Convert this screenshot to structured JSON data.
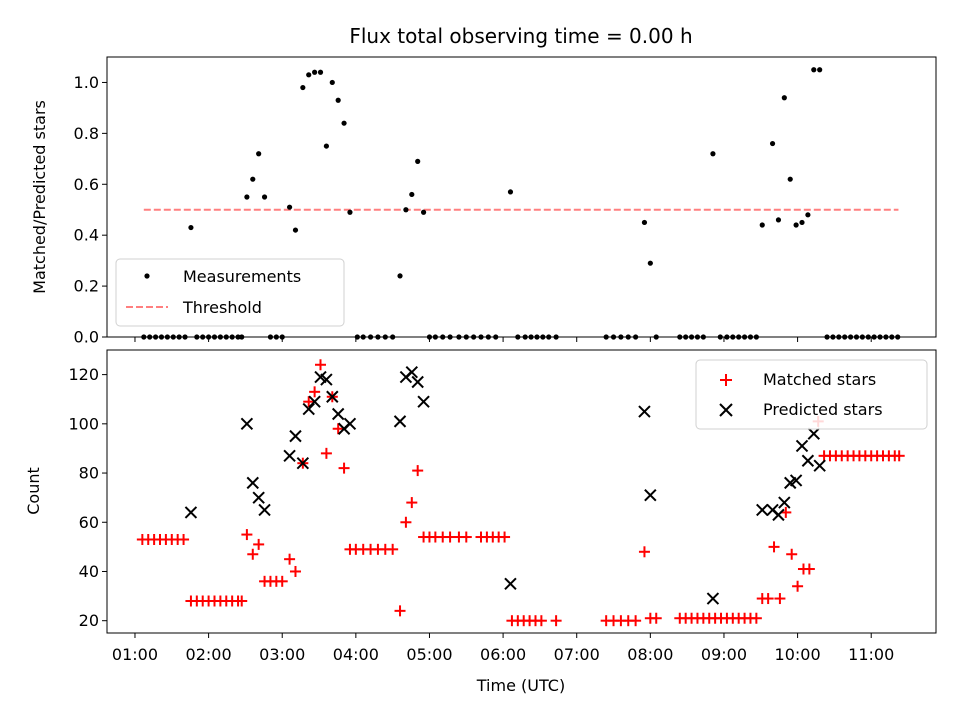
{
  "title": "Flux total observing time = 0.00 h",
  "top_ylabel": "Matched/Predicted stars",
  "bottom_ylabel": "Count",
  "xlabel": "Time (UTC)",
  "x_tick_labels": [
    "01:00",
    "02:00",
    "03:00",
    "04:00",
    "05:00",
    "06:00",
    "07:00",
    "08:00",
    "09:00",
    "10:00",
    "11:00"
  ],
  "legend_top": {
    "measurements": "Measurements",
    "threshold": "Threshold"
  },
  "legend_bottom": {
    "matched": "Matched stars",
    "predicted": "Predicted stars"
  },
  "colors": {
    "measurements": "#000000",
    "threshold": "#ff7f7f",
    "matched": "#ff0000",
    "predicted": "#000000"
  },
  "chart_data": [
    {
      "type": "scatter",
      "panel": "top",
      "xlabel": "",
      "ylabel": "Matched/Predicted stars",
      "x_unit": "hours UTC",
      "xlim": [
        0.62,
        11.88
      ],
      "ylim": [
        0,
        1.1
      ],
      "yticks": [
        0.0,
        0.2,
        0.4,
        0.6,
        0.8,
        1.0
      ],
      "y_tick_labels": [
        "0.0",
        "0.2",
        "0.4",
        "0.6",
        "0.8",
        "1.0"
      ],
      "legend_position": "lower-left",
      "threshold": {
        "value": 0.5,
        "x_range": [
          1.12,
          11.37
        ]
      },
      "series": [
        {
          "name": "Measurements",
          "points": [
            [
              1.12,
              0
            ],
            [
              1.2,
              0
            ],
            [
              1.28,
              0
            ],
            [
              1.36,
              0
            ],
            [
              1.44,
              0
            ],
            [
              1.52,
              0
            ],
            [
              1.6,
              0
            ],
            [
              1.68,
              0
            ],
            [
              1.76,
              0.43
            ],
            [
              1.84,
              0
            ],
            [
              1.92,
              0
            ],
            [
              2.0,
              0
            ],
            [
              2.08,
              0
            ],
            [
              2.16,
              0
            ],
            [
              2.24,
              0
            ],
            [
              2.32,
              0
            ],
            [
              2.4,
              0
            ],
            [
              2.45,
              0
            ],
            [
              2.52,
              0.55
            ],
            [
              2.6,
              0.62
            ],
            [
              2.68,
              0.72
            ],
            [
              2.76,
              0.55
            ],
            [
              2.84,
              0
            ],
            [
              2.92,
              0
            ],
            [
              3.0,
              0
            ],
            [
              3.1,
              0.51
            ],
            [
              3.18,
              0.42
            ],
            [
              3.28,
              0.98
            ],
            [
              3.36,
              1.03
            ],
            [
              3.44,
              1.04
            ],
            [
              3.52,
              1.04
            ],
            [
              3.6,
              0.75
            ],
            [
              3.68,
              1.0
            ],
            [
              3.76,
              0.93
            ],
            [
              3.84,
              0.84
            ],
            [
              3.92,
              0.49
            ],
            [
              4.02,
              0
            ],
            [
              4.1,
              0
            ],
            [
              4.2,
              0
            ],
            [
              4.3,
              0
            ],
            [
              4.4,
              0
            ],
            [
              4.5,
              0
            ],
            [
              4.6,
              0.24
            ],
            [
              4.68,
              0.5
            ],
            [
              4.76,
              0.56
            ],
            [
              4.84,
              0.69
            ],
            [
              4.92,
              0.49
            ],
            [
              5.0,
              0
            ],
            [
              5.08,
              0
            ],
            [
              5.18,
              0
            ],
            [
              5.28,
              0
            ],
            [
              5.4,
              0
            ],
            [
              5.5,
              0
            ],
            [
              5.6,
              0
            ],
            [
              5.7,
              0
            ],
            [
              5.8,
              0
            ],
            [
              5.9,
              0
            ],
            [
              6.1,
              0.57
            ],
            [
              6.2,
              0
            ],
            [
              6.3,
              0
            ],
            [
              6.38,
              0
            ],
            [
              6.46,
              0
            ],
            [
              6.54,
              0
            ],
            [
              6.62,
              0
            ],
            [
              6.72,
              0
            ],
            [
              7.4,
              0
            ],
            [
              7.5,
              0
            ],
            [
              7.6,
              0
            ],
            [
              7.7,
              0
            ],
            [
              7.8,
              0
            ],
            [
              7.92,
              0.45
            ],
            [
              8.0,
              0.29
            ],
            [
              8.08,
              0
            ],
            [
              8.4,
              0
            ],
            [
              8.48,
              0
            ],
            [
              8.56,
              0
            ],
            [
              8.64,
              0
            ],
            [
              8.72,
              0
            ],
            [
              8.85,
              0.72
            ],
            [
              8.95,
              0
            ],
            [
              9.04,
              0
            ],
            [
              9.12,
              0
            ],
            [
              9.2,
              0
            ],
            [
              9.28,
              0
            ],
            [
              9.36,
              0
            ],
            [
              9.44,
              0
            ],
            [
              9.52,
              0.44
            ],
            [
              9.66,
              0.76
            ],
            [
              9.74,
              0.46
            ],
            [
              9.82,
              0.94
            ],
            [
              9.9,
              0.62
            ],
            [
              9.98,
              0.44
            ],
            [
              10.06,
              0.45
            ],
            [
              10.14,
              0.48
            ],
            [
              10.22,
              1.05
            ],
            [
              10.3,
              1.05
            ],
            [
              10.4,
              0
            ],
            [
              10.48,
              0
            ],
            [
              10.56,
              0
            ],
            [
              10.64,
              0
            ],
            [
              10.72,
              0
            ],
            [
              10.8,
              0
            ],
            [
              10.88,
              0
            ],
            [
              10.96,
              0
            ],
            [
              11.04,
              0
            ],
            [
              11.12,
              0
            ],
            [
              11.2,
              0
            ],
            [
              11.28,
              0
            ],
            [
              11.36,
              0
            ]
          ]
        },
        {
          "name": "Threshold",
          "points": [
            [
              1.12,
              0.5
            ],
            [
              11.37,
              0.5
            ]
          ]
        }
      ]
    },
    {
      "type": "scatter",
      "panel": "bottom",
      "xlabel": "Time (UTC)",
      "ylabel": "Count",
      "x_unit": "hours UTC",
      "xlim": [
        0.62,
        11.88
      ],
      "ylim": [
        15,
        130
      ],
      "yticks": [
        20,
        40,
        60,
        80,
        100,
        120
      ],
      "y_tick_labels": [
        "20",
        "40",
        "60",
        "80",
        "100",
        "120"
      ],
      "xticks": [
        1,
        2,
        3,
        4,
        5,
        6,
        7,
        8,
        9,
        10,
        11
      ],
      "legend_position": "upper-right",
      "series": [
        {
          "name": "Matched stars",
          "points": [
            [
              1.1,
              53
            ],
            [
              1.18,
              53
            ],
            [
              1.26,
              53
            ],
            [
              1.34,
              53
            ],
            [
              1.42,
              53
            ],
            [
              1.5,
              53
            ],
            [
              1.58,
              53
            ],
            [
              1.66,
              53
            ],
            [
              1.76,
              28
            ],
            [
              1.84,
              28
            ],
            [
              1.92,
              28
            ],
            [
              2.0,
              28
            ],
            [
              2.08,
              28
            ],
            [
              2.16,
              28
            ],
            [
              2.24,
              28
            ],
            [
              2.32,
              28
            ],
            [
              2.4,
              28
            ],
            [
              2.45,
              28
            ],
            [
              2.52,
              55
            ],
            [
              2.6,
              47
            ],
            [
              2.68,
              51
            ],
            [
              2.76,
              36
            ],
            [
              2.84,
              36
            ],
            [
              2.92,
              36
            ],
            [
              3.0,
              36
            ],
            [
              3.1,
              45
            ],
            [
              3.18,
              40
            ],
            [
              3.28,
              84
            ],
            [
              3.36,
              109
            ],
            [
              3.44,
              113
            ],
            [
              3.52,
              124
            ],
            [
              3.6,
              88
            ],
            [
              3.68,
              111
            ],
            [
              3.76,
              98
            ],
            [
              3.84,
              82
            ],
            [
              3.92,
              49
            ],
            [
              4.0,
              49
            ],
            [
              4.1,
              49
            ],
            [
              4.2,
              49
            ],
            [
              4.3,
              49
            ],
            [
              4.4,
              49
            ],
            [
              4.5,
              49
            ],
            [
              4.6,
              24
            ],
            [
              4.68,
              60
            ],
            [
              4.76,
              68
            ],
            [
              4.84,
              81
            ],
            [
              4.92,
              54
            ],
            [
              5.0,
              54
            ],
            [
              5.08,
              54
            ],
            [
              5.18,
              54
            ],
            [
              5.28,
              54
            ],
            [
              5.4,
              54
            ],
            [
              5.5,
              54
            ],
            [
              5.7,
              54
            ],
            [
              5.78,
              54
            ],
            [
              5.86,
              54
            ],
            [
              5.94,
              54
            ],
            [
              6.02,
              54
            ],
            [
              6.12,
              20
            ],
            [
              6.2,
              20
            ],
            [
              6.28,
              20
            ],
            [
              6.36,
              20
            ],
            [
              6.44,
              20
            ],
            [
              6.52,
              20
            ],
            [
              6.72,
              20
            ],
            [
              7.4,
              20
            ],
            [
              7.5,
              20
            ],
            [
              7.6,
              20
            ],
            [
              7.7,
              20
            ],
            [
              7.8,
              20
            ],
            [
              7.92,
              48
            ],
            [
              8.0,
              21
            ],
            [
              8.08,
              21
            ],
            [
              8.4,
              21
            ],
            [
              8.48,
              21
            ],
            [
              8.56,
              21
            ],
            [
              8.64,
              21
            ],
            [
              8.72,
              21
            ],
            [
              8.8,
              21
            ],
            [
              8.88,
              21
            ],
            [
              8.96,
              21
            ],
            [
              9.04,
              21
            ],
            [
              9.12,
              21
            ],
            [
              9.2,
              21
            ],
            [
              9.28,
              21
            ],
            [
              9.36,
              21
            ],
            [
              9.44,
              21
            ],
            [
              9.52,
              29
            ],
            [
              9.6,
              29
            ],
            [
              9.68,
              50
            ],
            [
              9.76,
              29
            ],
            [
              9.84,
              64
            ],
            [
              9.92,
              47
            ],
            [
              10.0,
              34
            ],
            [
              10.08,
              41
            ],
            [
              10.16,
              41
            ],
            [
              10.28,
              101
            ],
            [
              10.36,
              87
            ],
            [
              10.44,
              87
            ],
            [
              10.52,
              87
            ],
            [
              10.6,
              87
            ],
            [
              10.68,
              87
            ],
            [
              10.76,
              87
            ],
            [
              10.84,
              87
            ],
            [
              10.92,
              87
            ],
            [
              11.0,
              87
            ],
            [
              11.08,
              87
            ],
            [
              11.16,
              87
            ],
            [
              11.24,
              87
            ],
            [
              11.32,
              87
            ],
            [
              11.38,
              87
            ]
          ]
        },
        {
          "name": "Predicted stars",
          "points": [
            [
              1.76,
              64
            ],
            [
              2.52,
              100
            ],
            [
              2.6,
              76
            ],
            [
              2.68,
              70
            ],
            [
              2.76,
              65
            ],
            [
              3.1,
              87
            ],
            [
              3.18,
              95
            ],
            [
              3.28,
              84
            ],
            [
              3.36,
              106
            ],
            [
              3.44,
              109
            ],
            [
              3.52,
              119
            ],
            [
              3.6,
              118
            ],
            [
              3.68,
              111
            ],
            [
              3.76,
              104
            ],
            [
              3.84,
              98
            ],
            [
              3.92,
              100
            ],
            [
              4.6,
              101
            ],
            [
              4.68,
              119
            ],
            [
              4.76,
              121
            ],
            [
              4.84,
              117
            ],
            [
              4.92,
              109
            ],
            [
              6.1,
              35
            ],
            [
              7.92,
              105
            ],
            [
              8.0,
              71
            ],
            [
              8.85,
              29
            ],
            [
              9.52,
              65
            ],
            [
              9.66,
              65
            ],
            [
              9.74,
              63
            ],
            [
              9.82,
              68
            ],
            [
              9.9,
              76
            ],
            [
              9.98,
              77
            ],
            [
              10.06,
              91
            ],
            [
              10.14,
              85
            ],
            [
              10.22,
              96
            ],
            [
              10.3,
              83
            ]
          ]
        }
      ]
    }
  ]
}
